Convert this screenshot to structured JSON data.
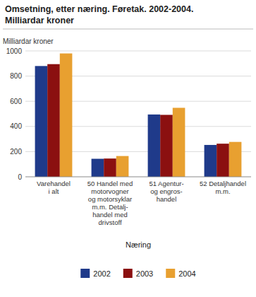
{
  "chart_data": {
    "type": "bar",
    "title": "Omsetning, etter næring. Føretak. 2002-2004.",
    "subtitle": "Milliardar kroner",
    "ylabel": "Milliardar kroner",
    "xlabel": "Næring",
    "categories": [
      "Varehandel\ni alt",
      "50 Handel med\nmotorvogner\nog motorsyklar\nm.m. Detalj-\nhandel med\ndrivstoff",
      "51 Agentur-\nog engros-\nhandel",
      "52 Detaljhandel\nm.m."
    ],
    "series": [
      {
        "name": "2002",
        "color": "#1F3A8A",
        "values": [
          880,
          143,
          495,
          253
        ]
      },
      {
        "name": "2003",
        "color": "#8B1010",
        "values": [
          895,
          145,
          492,
          263
        ]
      },
      {
        "name": "2004",
        "color": "#E8A030",
        "values": [
          980,
          165,
          548,
          277
        ]
      }
    ],
    "ylim": [
      0,
      1000
    ],
    "yticks": [
      0,
      200,
      400,
      600,
      800,
      1000
    ],
    "grid": true,
    "legend": "bottom"
  }
}
